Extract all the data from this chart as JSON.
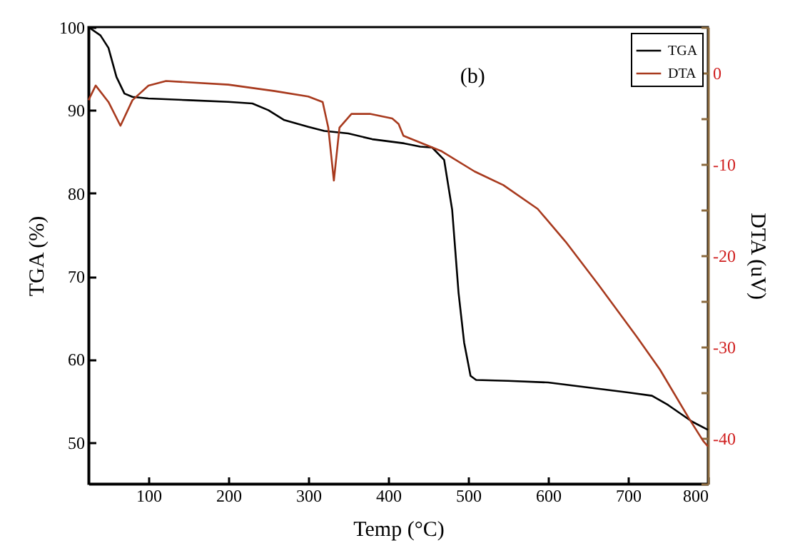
{
  "chart_data": {
    "type": "line",
    "xlabel": "Temp (°C)",
    "ylabel": "TGA (%)",
    "y2label": "DTA (uV)",
    "xlim": [
      25,
      800
    ],
    "xticks": [
      100,
      200,
      300,
      400,
      500,
      600,
      700,
      800
    ],
    "ylim": [
      45,
      100
    ],
    "yticks": [
      50,
      60,
      70,
      80,
      90,
      100
    ],
    "y2lim": [
      -45,
      5
    ],
    "y2ticks": [
      {
        "value": -45,
        "label": null
      },
      -40,
      {
        "value": -35,
        "label": null
      },
      -30,
      {
        "value": -25,
        "label": null
      },
      -20,
      {
        "value": -15,
        "label": null
      },
      -10,
      {
        "value": -5,
        "label": null
      },
      0,
      {
        "value": 5,
        "label": null
      }
    ],
    "grid": false,
    "legend": "top right",
    "marker": "none",
    "line_style": "solid",
    "annotations": [
      "(b)"
    ],
    "series": [
      {
        "name": "TGA",
        "color": "#000000",
        "x": [
          25,
          40,
          50,
          60,
          70,
          80,
          100,
          150,
          200,
          230,
          250,
          270,
          300,
          320,
          350,
          380,
          420,
          440,
          455,
          470,
          480,
          488,
          495,
          503,
          510,
          550,
          600,
          650,
          700,
          730,
          750,
          780,
          800
        ],
        "values": [
          100,
          99,
          97.5,
          94,
          92,
          91.6,
          91.4,
          91.2,
          91,
          90.8,
          90,
          88.8,
          88,
          87.5,
          87.2,
          86.5,
          86,
          85.6,
          85.5,
          84,
          78,
          68,
          62,
          58,
          57.5,
          57.4,
          57.2,
          56.6,
          56,
          55.6,
          54.5,
          52.5,
          51.5
        ]
      },
      {
        "name": "DTA",
        "color": "#a83a1e",
        "axis": "y2",
        "x": [
          25,
          34,
          50,
          65,
          80,
          100,
          122,
          200,
          258,
          300,
          318,
          325,
          332,
          339,
          354,
          377,
          405,
          413,
          419,
          467,
          508,
          544,
          587,
          622,
          663,
          711,
          740,
          776,
          794,
          800
        ],
        "values": [
          -3,
          -1.4,
          -3.2,
          -5.8,
          -3,
          -1.4,
          -0.9,
          -1.3,
          -2.0,
          -2.6,
          -3.2,
          -6,
          -11.8,
          -6,
          -4.5,
          -4.5,
          -5,
          -5.6,
          -6.9,
          -8.6,
          -10.8,
          -12.3,
          -14.9,
          -18.5,
          -23.2,
          -28.9,
          -32.5,
          -37.8,
          -40.3,
          -40.9
        ]
      }
    ]
  }
}
